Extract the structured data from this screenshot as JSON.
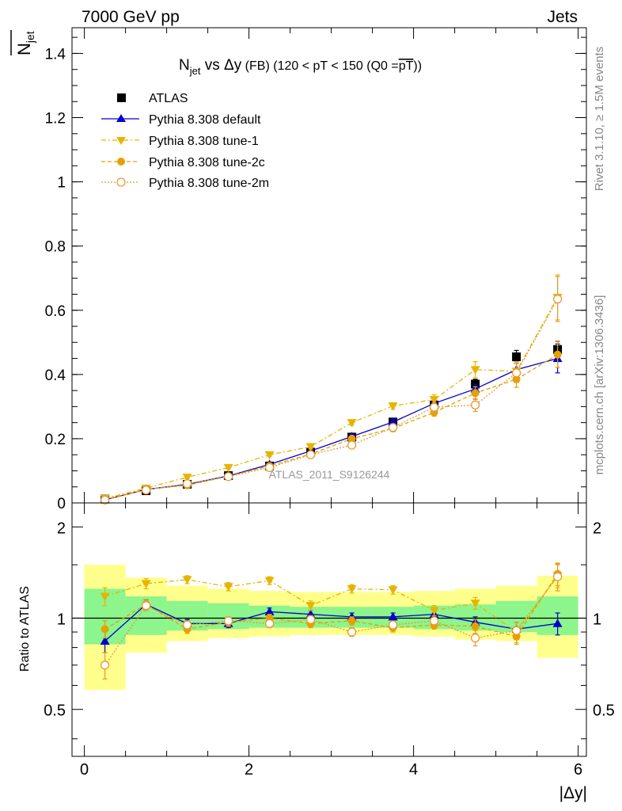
{
  "header": {
    "left": "7000 GeV pp",
    "right": "Jets",
    "side_top": "Rivet 3.1.10, ≥ 1.5M events",
    "side_bottom": "mcplots.cern.ch [arXiv:1306.3436]",
    "watermark": "ATLAS_2011_S9126244"
  },
  "colors": {
    "atlas": "#000000",
    "default": "#0000cc",
    "tune1": "#e6b400",
    "tune2c": "#e6a000",
    "tune2m": "#e69a33",
    "band_inner": "#8cf58c",
    "band_outer": "#ffff8c"
  },
  "chart_data": [
    {
      "type": "line",
      "title": "N_jet vs Δy (FB) (120 < pT < 150 (Q0 = pT))",
      "title_parts": {
        "n": "N",
        "jet": "jet",
        "vs": " vs ",
        "dy": "Δy",
        "fb": " (FB) ",
        "cond": "(120 < pT < 150 (Q0 =",
        "pt": "pT",
        "close": "))"
      },
      "ylabel_parts": {
        "n": "N",
        "jet": "jet"
      },
      "ylim": [
        0,
        1.48
      ],
      "xlim": [
        -0.15,
        6.1
      ],
      "y_ticks": [
        0,
        0.2,
        0.4,
        0.6,
        0.8,
        1,
        1.2,
        1.4
      ],
      "y_tick_labels": [
        "0",
        "0.2",
        "0.4",
        "0.6",
        "0.8",
        "1",
        "1.2",
        "1.4"
      ],
      "x": [
        0.25,
        0.75,
        1.25,
        1.75,
        2.25,
        2.75,
        3.25,
        3.75,
        4.25,
        4.75,
        5.25,
        5.75
      ],
      "legend": {
        "position": "top-left",
        "entries": [
          "ATLAS",
          "Pythia 8.308 default",
          "Pythia 8.308 tune-1",
          "Pythia 8.308 tune-2c",
          "Pythia 8.308 tune-2m"
        ]
      },
      "series": [
        {
          "name": "ATLAS",
          "values": [
            0.012,
            0.038,
            0.058,
            0.085,
            0.115,
            0.158,
            0.205,
            0.252,
            0.305,
            0.37,
            0.455,
            0.478
          ],
          "errors": [
            0.001,
            0.002,
            0.003,
            0.004,
            0.005,
            0.006,
            0.008,
            0.01,
            0.012,
            0.015,
            0.02,
            0.025
          ]
        },
        {
          "name": "Pythia 8.308 default",
          "values": [
            0.01,
            0.042,
            0.058,
            0.084,
            0.12,
            0.162,
            0.207,
            0.252,
            0.31,
            0.355,
            0.415,
            0.45
          ],
          "errors": [
            0.001,
            0.002,
            0.002,
            0.003,
            0.004,
            0.005,
            0.006,
            0.008,
            0.01,
            0.015,
            0.025,
            0.045
          ]
        },
        {
          "name": "Pythia 8.308 tune-1",
          "values": [
            0.014,
            0.046,
            0.08,
            0.11,
            0.15,
            0.175,
            0.25,
            0.302,
            0.322,
            0.415,
            0.41,
            0.64
          ],
          "errors": [
            0.001,
            0.002,
            0.003,
            0.004,
            0.005,
            0.007,
            0.008,
            0.01,
            0.015,
            0.025,
            0.03,
            0.07
          ]
        },
        {
          "name": "Pythia 8.308 tune-2c",
          "values": [
            0.011,
            0.042,
            0.055,
            0.083,
            0.115,
            0.152,
            0.2,
            0.232,
            0.282,
            0.342,
            0.385,
            0.462
          ],
          "errors": [
            0.001,
            0.002,
            0.003,
            0.004,
            0.005,
            0.006,
            0.008,
            0.01,
            0.012,
            0.02,
            0.025,
            0.04
          ]
        },
        {
          "name": "Pythia 8.308 tune-2m",
          "values": [
            0.009,
            0.04,
            0.06,
            0.082,
            0.11,
            0.15,
            0.18,
            0.235,
            0.298,
            0.305,
            0.405,
            0.635
          ],
          "errors": [
            0.001,
            0.002,
            0.003,
            0.004,
            0.005,
            0.006,
            0.008,
            0.01,
            0.015,
            0.02,
            0.03,
            0.07
          ]
        }
      ]
    },
    {
      "type": "line",
      "ylabel": "Ratio to ATLAS",
      "xlabel": "|Δy|",
      "ylim": [
        0.35,
        2.4
      ],
      "xlim": [
        -0.15,
        6.1
      ],
      "y_ticks": [
        0.5,
        1,
        2
      ],
      "y_tick_labels": [
        "0.5",
        "1",
        "2"
      ],
      "x_ticks": [
        0,
        2,
        4,
        6
      ],
      "x_tick_labels": [
        "0",
        "2",
        "4",
        "6"
      ],
      "band_bins": [
        [
          0,
          0.5
        ],
        [
          0.5,
          1
        ],
        [
          1,
          1.5
        ],
        [
          1.5,
          2
        ],
        [
          2,
          2.5
        ],
        [
          2.5,
          3
        ],
        [
          3,
          3.5
        ],
        [
          3.5,
          4
        ],
        [
          4,
          4.5
        ],
        [
          4.5,
          5
        ],
        [
          5,
          5.5
        ],
        [
          5.5,
          6
        ]
      ],
      "band_inner": [
        [
          0.82,
          1.25
        ],
        [
          0.88,
          1.18
        ],
        [
          0.91,
          1.14
        ],
        [
          0.92,
          1.12
        ],
        [
          0.93,
          1.1
        ],
        [
          0.93,
          1.09
        ],
        [
          0.93,
          1.09
        ],
        [
          0.93,
          1.09
        ],
        [
          0.92,
          1.1
        ],
        [
          0.91,
          1.11
        ],
        [
          0.9,
          1.14
        ],
        [
          0.88,
          1.18
        ]
      ],
      "band_outer": [
        [
          0.58,
          1.5
        ],
        [
          0.77,
          1.36
        ],
        [
          0.84,
          1.28
        ],
        [
          0.86,
          1.25
        ],
        [
          0.87,
          1.23
        ],
        [
          0.88,
          1.22
        ],
        [
          0.88,
          1.22
        ],
        [
          0.88,
          1.22
        ],
        [
          0.87,
          1.23
        ],
        [
          0.85,
          1.25
        ],
        [
          0.84,
          1.28
        ],
        [
          0.74,
          1.38
        ]
      ],
      "reference": 1,
      "x": [
        0.25,
        0.75,
        1.25,
        1.75,
        2.25,
        2.75,
        3.25,
        3.75,
        4.25,
        4.75,
        5.25,
        5.75
      ],
      "series": [
        {
          "name": "Pythia 8.308 default",
          "values": [
            0.84,
            1.11,
            0.96,
            0.96,
            1.05,
            1.03,
            1.01,
            1.01,
            1.03,
            0.97,
            0.92,
            0.96
          ],
          "errors": [
            0.07,
            0.04,
            0.03,
            0.03,
            0.03,
            0.03,
            0.03,
            0.03,
            0.03,
            0.04,
            0.05,
            0.08
          ]
        },
        {
          "name": "Pythia 8.308 tune-1",
          "values": [
            1.18,
            1.3,
            1.34,
            1.27,
            1.33,
            1.1,
            1.25,
            1.24,
            1.06,
            1.12,
            0.9,
            1.38
          ],
          "errors": [
            0.08,
            0.05,
            0.04,
            0.04,
            0.04,
            0.04,
            0.04,
            0.04,
            0.04,
            0.05,
            0.07,
            0.12
          ]
        },
        {
          "name": "Pythia 8.308 tune-2c",
          "values": [
            0.92,
            1.11,
            0.92,
            0.97,
            1.0,
            0.96,
            0.98,
            0.93,
            0.95,
            0.94,
            0.87,
            1.4
          ],
          "errors": [
            0.06,
            0.04,
            0.03,
            0.03,
            0.03,
            0.03,
            0.03,
            0.03,
            0.03,
            0.05,
            0.05,
            0.12
          ]
        },
        {
          "name": "Pythia 8.308 tune-2m",
          "values": [
            0.7,
            1.1,
            0.95,
            0.98,
            0.96,
            0.99,
            0.9,
            0.95,
            0.98,
            0.86,
            0.91,
            1.37
          ],
          "errors": [
            0.07,
            0.04,
            0.03,
            0.03,
            0.03,
            0.03,
            0.03,
            0.03,
            0.03,
            0.05,
            0.06,
            0.14
          ]
        }
      ]
    }
  ]
}
